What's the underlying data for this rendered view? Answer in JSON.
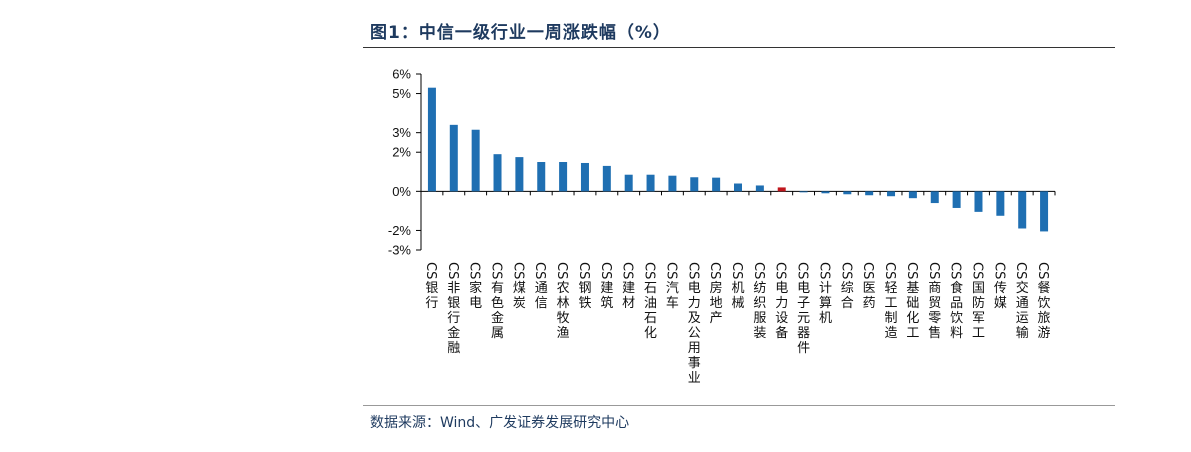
{
  "figure": {
    "title": "图1：中信一级行业一周涨跌幅（%）",
    "source": "数据来源：Wind、广发证券发展研究中心"
  },
  "colors": {
    "bar": "#1f6fb2",
    "highlight": "#c0161c",
    "axis": "#000000"
  },
  "chart_data": {
    "type": "bar",
    "title": "图1：中信一级行业一周涨跌幅（%）",
    "xlabel": "",
    "ylabel": "",
    "ylim": [
      -3,
      6
    ],
    "yticks": [
      -3,
      -2,
      0,
      2,
      3,
      5,
      6
    ],
    "ytick_labels": [
      "-3%",
      "-2%",
      "0%",
      "2%",
      "3%",
      "5%",
      "6%"
    ],
    "grid": false,
    "legend": "none",
    "highlight_category": "CS电力设备",
    "categories": [
      "CS银行",
      "CS非银行金融",
      "CS家电",
      "CS有色金属",
      "CS煤炭",
      "CS通信",
      "CS农林牧渔",
      "CS钢铁",
      "CS建筑",
      "CS建材",
      "CS石油石化",
      "CS汽车",
      "CS电力及公用事业",
      "CS房地产",
      "CS机械",
      "CS纺织服装",
      "CS电力设备",
      "CS电子元器件",
      "CS计算机",
      "CS综合",
      "CS医药",
      "CS轻工制造",
      "CS基础化工",
      "CS商贸零售",
      "CS食品饮料",
      "CS国防军工",
      "CS传媒",
      "CS交通运输",
      "CS餐饮旅游"
    ],
    "values": [
      5.3,
      3.4,
      3.15,
      1.9,
      1.75,
      1.5,
      1.5,
      1.45,
      1.3,
      0.85,
      0.85,
      0.8,
      0.72,
      0.7,
      0.4,
      0.3,
      0.2,
      -0.05,
      -0.1,
      -0.15,
      -0.2,
      -0.25,
      -0.35,
      -0.6,
      -0.85,
      -1.05,
      -1.25,
      -1.9,
      -2.05
    ]
  }
}
